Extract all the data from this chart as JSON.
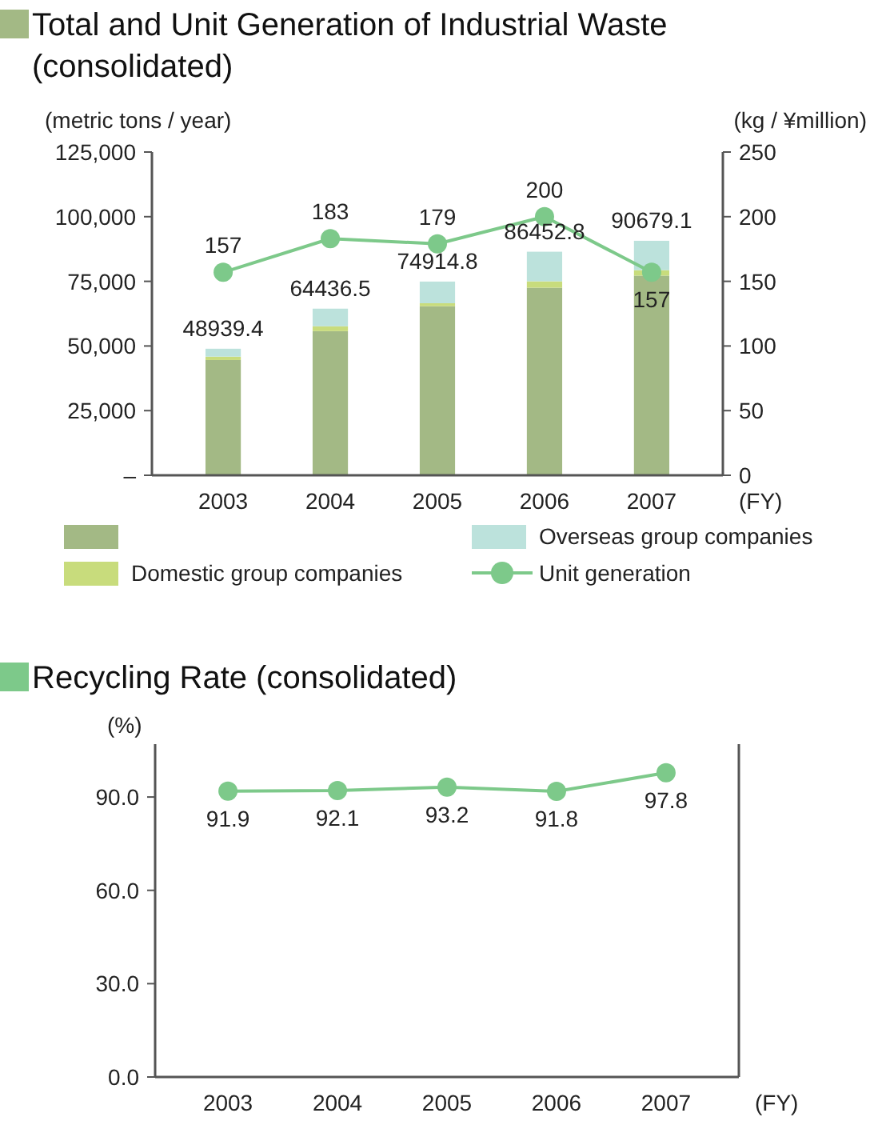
{
  "chart_data": [
    {
      "type": "bar",
      "title": "Total and Unit Generation of Industrial Waste (consolidated)",
      "ylabel": "(metric tons / year)",
      "y2label": "(kg / ¥million)",
      "xlabel": "(FY)",
      "categories": [
        "2003",
        "2004",
        "2005",
        "2006",
        "2007"
      ],
      "stacked": true,
      "legend": "bottom",
      "grid": false,
      "series": [
        {
          "color": "#a3b985",
          "values": [
            44571,
            55750,
            65382,
            72542,
            77203
          ]
        },
        {
          "name": "Domestic group companies",
          "color": "#c8dc7c",
          "values": [
            1320,
            1869,
            1140,
            2473,
            2128
          ]
        },
        {
          "name": "Overseas group companies",
          "color": "#bce2dc",
          "values": [
            3048.4,
            6817.5,
            8392.8,
            11437.8,
            11348.1
          ]
        },
        {
          "name": "Unit generation",
          "type": "line",
          "axis": "y2",
          "marker": "circle",
          "color": "#7dc98a",
          "values": [
            157,
            183,
            179,
            200,
            157
          ],
          "value_labels": [
            "157",
            "183",
            "179",
            "200",
            "157"
          ]
        }
      ],
      "totals": [
        "48939.4",
        "64436.5",
        "74914.8",
        "86452.8",
        "90679.1"
      ],
      "ylim": [
        0,
        125000
      ],
      "yticks": [
        {
          "value": 0,
          "label": "–"
        },
        {
          "value": 25000,
          "label": "25,000"
        },
        {
          "value": 50000,
          "label": "50,000"
        },
        {
          "value": 75000,
          "label": "75,000"
        },
        {
          "value": 100000,
          "label": "100,000"
        },
        {
          "value": 125000,
          "label": "125,000"
        }
      ],
      "y2lim": [
        0,
        250
      ],
      "y2ticks": [
        0,
        50,
        100,
        150,
        200,
        250
      ]
    },
    {
      "type": "line",
      "title": "Recycling Rate (consolidated)",
      "ylabel": "(%)",
      "xlabel": "(FY)",
      "categories": [
        "2003",
        "2004",
        "2005",
        "2006",
        "2007"
      ],
      "marker": "circle",
      "grid": false,
      "data_labels": true,
      "series": [
        {
          "color": "#7dc98a",
          "values": [
            91.9,
            92.1,
            93.2,
            91.8,
            97.8
          ]
        }
      ],
      "ylim": [
        0,
        107
      ],
      "yticks": [
        {
          "value": 0,
          "label": "0.0"
        },
        {
          "value": 30,
          "label": "30.0"
        },
        {
          "value": 60,
          "label": "60.0"
        },
        {
          "value": 90,
          "label": "90.0"
        }
      ]
    }
  ]
}
